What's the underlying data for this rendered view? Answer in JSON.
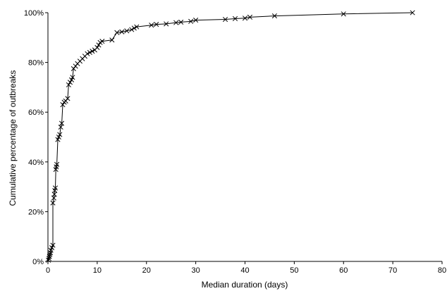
{
  "chart_data": {
    "type": "line",
    "title": "",
    "xlabel": "Median duration (days)",
    "ylabel": "Cumulative percentage of outbreaks",
    "xlim": [
      0,
      80
    ],
    "ylim": [
      0,
      100
    ],
    "x_ticks": [
      "0",
      "10",
      "20",
      "30",
      "40",
      "50",
      "60",
      "70",
      "80"
    ],
    "y_ticks": [
      "0%",
      "20%",
      "40%",
      "60%",
      "80%",
      "100%"
    ],
    "grid": false,
    "marker": "x",
    "line_color": "#000000",
    "series": [
      {
        "points": [
          [
            0.1,
            0.5
          ],
          [
            0.2,
            1.2
          ],
          [
            0.3,
            2.0
          ],
          [
            0.4,
            2.8
          ],
          [
            0.5,
            3.5
          ],
          [
            0.6,
            4.5
          ],
          [
            0.8,
            5.5
          ],
          [
            1.0,
            6.5
          ],
          [
            1.0,
            23.5
          ],
          [
            1.2,
            25.5
          ],
          [
            1.3,
            27.0
          ],
          [
            1.4,
            28.5
          ],
          [
            1.5,
            29.5
          ],
          [
            1.6,
            37.0
          ],
          [
            1.7,
            38.0
          ],
          [
            1.8,
            39.0
          ],
          [
            2.0,
            49.0
          ],
          [
            2.2,
            50.0
          ],
          [
            2.4,
            51.0
          ],
          [
            2.6,
            54.0
          ],
          [
            2.8,
            55.5
          ],
          [
            3.0,
            63.0
          ],
          [
            3.3,
            64.0
          ],
          [
            3.6,
            64.5
          ],
          [
            4.0,
            65.5
          ],
          [
            4.2,
            71.0
          ],
          [
            4.5,
            72.0
          ],
          [
            4.8,
            73.0
          ],
          [
            5.0,
            74.0
          ],
          [
            5.2,
            77.5
          ],
          [
            5.6,
            78.5
          ],
          [
            6.0,
            79.5
          ],
          [
            6.5,
            80.5
          ],
          [
            7.0,
            81.5
          ],
          [
            7.5,
            82.5
          ],
          [
            8.0,
            83.5
          ],
          [
            8.5,
            84.0
          ],
          [
            9.0,
            84.5
          ],
          [
            9.5,
            85.0
          ],
          [
            10.0,
            86.0
          ],
          [
            10.3,
            87.0
          ],
          [
            10.6,
            88.0
          ],
          [
            11.0,
            88.5
          ],
          [
            13.0,
            89.0
          ],
          [
            14.0,
            92.0
          ],
          [
            15.0,
            92.3
          ],
          [
            16.0,
            92.7
          ],
          [
            17.0,
            93.2
          ],
          [
            17.5,
            93.8
          ],
          [
            18.0,
            94.3
          ],
          [
            21.0,
            95.0
          ],
          [
            22.0,
            95.3
          ],
          [
            24.0,
            95.5
          ],
          [
            26.0,
            96.0
          ],
          [
            27.0,
            96.2
          ],
          [
            29.0,
            96.5
          ],
          [
            30.0,
            97.0
          ],
          [
            36.0,
            97.3
          ],
          [
            38.0,
            97.6
          ],
          [
            40.0,
            97.8
          ],
          [
            41.0,
            98.2
          ],
          [
            46.0,
            98.7
          ],
          [
            60.0,
            99.5
          ],
          [
            74.0,
            100.0
          ]
        ]
      }
    ]
  }
}
